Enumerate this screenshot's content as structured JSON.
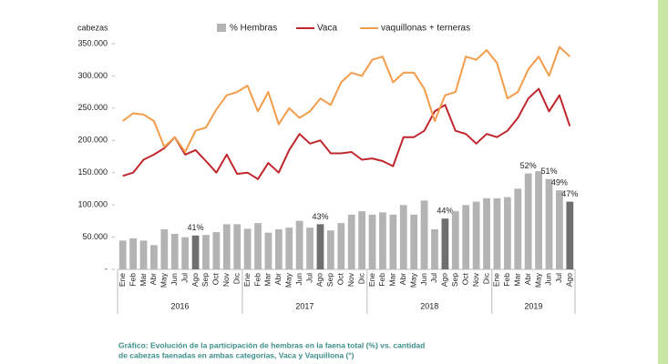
{
  "chart_data": {
    "type": "bar-line",
    "y_label": "cabezas",
    "categories": [
      "Ene",
      "Feb",
      "Mar",
      "Abr",
      "May",
      "Jun",
      "Jul",
      "Ago",
      "Sep",
      "Oct",
      "Nov",
      "Dic",
      "Ene",
      "Feb",
      "Mar",
      "Abr",
      "May",
      "Jun",
      "Jul",
      "Ago",
      "Sep",
      "Oct",
      "Nov",
      "Dic",
      "Ene",
      "Feb",
      "Mar",
      "Abr",
      "May",
      "Jun",
      "Jul",
      "Ago",
      "Sep",
      "Oct",
      "Nov",
      "Dic",
      "Ene",
      "Feb",
      "Mar",
      "Abr",
      "May",
      "Jun",
      "Jul",
      "Ago"
    ],
    "year_groups": [
      {
        "label": "2016",
        "count": 12
      },
      {
        "label": "2017",
        "count": 12
      },
      {
        "label": "2018",
        "count": 12
      },
      {
        "label": "2019",
        "count": 8
      }
    ],
    "series": [
      {
        "name": "% Hembras",
        "type": "bar",
        "axis": "y2",
        "color": "#b3b3b3",
        "colors": [
          "#b3b3b3",
          "#b3b3b3",
          "#b3b3b3",
          "#b3b3b3",
          "#b3b3b3",
          "#b3b3b3",
          "#b3b3b3",
          "#6f6f6f",
          "#b3b3b3",
          "#b3b3b3",
          "#b3b3b3",
          "#b3b3b3",
          "#b3b3b3",
          "#b3b3b3",
          "#b3b3b3",
          "#b3b3b3",
          "#b3b3b3",
          "#b3b3b3",
          "#b3b3b3",
          "#6f6f6f",
          "#b3b3b3",
          "#b3b3b3",
          "#b3b3b3",
          "#b3b3b3",
          "#b3b3b3",
          "#b3b3b3",
          "#b3b3b3",
          "#b3b3b3",
          "#b3b3b3",
          "#b3b3b3",
          "#b3b3b3",
          "#6f6f6f",
          "#b3b3b3",
          "#b3b3b3",
          "#b3b3b3",
          "#b3b3b3",
          "#b3b3b3",
          "#b3b3b3",
          "#b3b3b3",
          "#b3b3b3",
          "#b3b3b3",
          "#b3b3b3",
          "#b3b3b3",
          "#6f6f6f"
        ],
        "values": [
          40.1,
          40.5,
          40.1,
          39.3,
          42.1,
          41.3,
          40.7,
          41,
          41.1,
          41.6,
          43,
          43,
          42.2,
          43.2,
          41.5,
          42.1,
          42.4,
          43.6,
          42.4,
          43,
          41.9,
          43.2,
          44.7,
          45.3,
          44.7,
          45.1,
          44.7,
          46.4,
          44.7,
          47.2,
          42.1,
          44,
          45.3,
          46.4,
          47,
          47.6,
          47.6,
          47.8,
          49.3,
          52,
          52.4,
          51,
          49,
          47
        ],
        "value_labels": [
          null,
          null,
          null,
          null,
          null,
          null,
          null,
          "41%",
          null,
          null,
          null,
          null,
          null,
          null,
          null,
          null,
          null,
          null,
          null,
          "43%",
          null,
          null,
          null,
          null,
          null,
          null,
          null,
          null,
          null,
          null,
          null,
          "44%",
          null,
          null,
          null,
          null,
          null,
          null,
          null,
          "52%",
          null,
          "51%",
          "49%",
          "47%"
        ]
      },
      {
        "name": "Vaca",
        "type": "line",
        "color": "#c0262d",
        "values": [
          145000,
          150000,
          170000,
          178000,
          188000,
          205000,
          178000,
          185000,
          168000,
          150000,
          178000,
          148000,
          150000,
          140000,
          165000,
          150000,
          185000,
          210000,
          195000,
          200000,
          180000,
          180000,
          182000,
          170000,
          172000,
          168000,
          160000,
          205000,
          205000,
          215000,
          245000,
          255000,
          215000,
          210000,
          195000,
          210000,
          205000,
          215000,
          235000,
          265000,
          280000,
          245000,
          270000,
          222000
        ]
      },
      {
        "name": "vaquillonas + terneras",
        "type": "line",
        "color": "#f39c4b",
        "values": [
          230000,
          242000,
          240000,
          230000,
          190000,
          205000,
          182000,
          215000,
          220000,
          248000,
          270000,
          275000,
          285000,
          245000,
          275000,
          225000,
          250000,
          235000,
          245000,
          265000,
          255000,
          290000,
          305000,
          300000,
          325000,
          330000,
          290000,
          305000,
          305000,
          280000,
          230000,
          270000,
          275000,
          330000,
          325000,
          340000,
          320000,
          265000,
          275000,
          310000,
          330000,
          300000,
          345000,
          330000
        ]
      }
    ],
    "ylim": [
      0,
      350000
    ],
    "yticks": [
      {
        "value": 0,
        "label": "-"
      },
      {
        "value": 50000,
        "label": "50.000"
      },
      {
        "value": 100000,
        "label": "100.000"
      },
      {
        "value": 150000,
        "label": "150.000"
      },
      {
        "value": 200000,
        "label": "200.000"
      },
      {
        "value": 250000,
        "label": "250.000"
      },
      {
        "value": 300000,
        "label": "300.000"
      },
      {
        "value": 350000,
        "label": "350.000"
      }
    ],
    "y2lim": [
      35,
      75
    ],
    "grid": false,
    "caption": [
      "Gráfico: Evolución de la participación de hembras en la faena total (%) vs. cantidad",
      "de cabezas faenadas en ambas categorías, Vaca y Vaquillona (°)"
    ]
  }
}
